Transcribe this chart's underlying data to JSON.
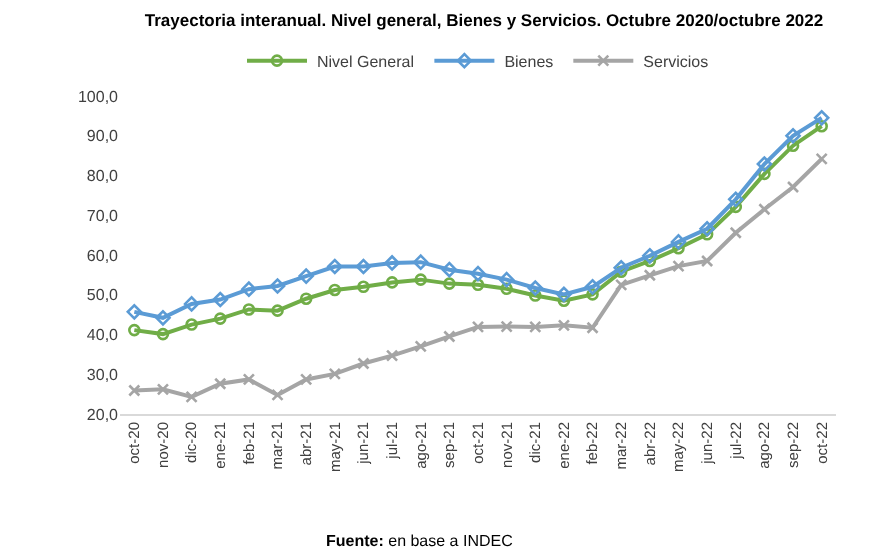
{
  "chart_data": {
    "type": "line",
    "title": "Trayectoria interanual. Nivel general, Bienes y Servicios. Octubre 2020/octubre 2022",
    "categories": [
      "oct-20",
      "nov-20",
      "dic-20",
      "ene-21",
      "feb-21",
      "mar-21",
      "abr-21",
      "may-21",
      "jun-21",
      "jul-21",
      "ago-21",
      "sep-21",
      "oct-21",
      "nov-21",
      "dic-21",
      "ene-22",
      "feb-22",
      "mar-22",
      "abr-22",
      "may-22",
      "jun-22",
      "jul-22",
      "ago-22",
      "sep-22",
      "oct-22"
    ],
    "series": [
      {
        "name": "Nivel General",
        "color": "#70ad47",
        "marker": "circle",
        "values": [
          41.1,
          40.1,
          42.5,
          44.0,
          46.3,
          46.0,
          49.0,
          51.2,
          52.0,
          53.1,
          53.8,
          52.8,
          52.5,
          51.5,
          49.8,
          48.5,
          50.1,
          55.8,
          58.5,
          61.7,
          65.2,
          72.1,
          80.4,
          87.5,
          92.4
        ]
      },
      {
        "name": "Bienes",
        "color": "#5b9bd5",
        "marker": "diamond",
        "values": [
          45.7,
          44.2,
          47.7,
          48.8,
          51.4,
          52.2,
          54.7,
          57.1,
          57.1,
          58.0,
          58.2,
          56.3,
          55.3,
          53.8,
          51.7,
          50.1,
          52.0,
          56.8,
          59.8,
          63.3,
          66.6,
          74.0,
          82.9,
          90.0,
          94.5
        ]
      },
      {
        "name": "Servicios",
        "color": "#a5a5a5",
        "marker": "cross",
        "values": [
          25.9,
          26.2,
          24.3,
          27.6,
          28.7,
          24.8,
          28.7,
          30.1,
          32.7,
          34.7,
          37.0,
          39.5,
          41.9,
          42.0,
          41.9,
          42.3,
          41.7,
          52.5,
          54.9,
          57.2,
          58.5,
          65.6,
          71.5,
          77.1,
          84.2
        ]
      }
    ],
    "ylim": [
      20,
      100
    ],
    "yticks": [
      {
        "value": 20,
        "label": "20,0"
      },
      {
        "value": 30,
        "label": "30,0"
      },
      {
        "value": 40,
        "label": "40,0"
      },
      {
        "value": 50,
        "label": "50,0"
      },
      {
        "value": 60,
        "label": "60,0"
      },
      {
        "value": 70,
        "label": "70,0"
      },
      {
        "value": 80,
        "label": "80,0"
      },
      {
        "value": 90,
        "label": "90,0"
      },
      {
        "value": 100,
        "label": "100,0"
      }
    ],
    "grid": false,
    "legend": "top",
    "annotations": [
      "Fuente: en base a INDEC"
    ]
  }
}
